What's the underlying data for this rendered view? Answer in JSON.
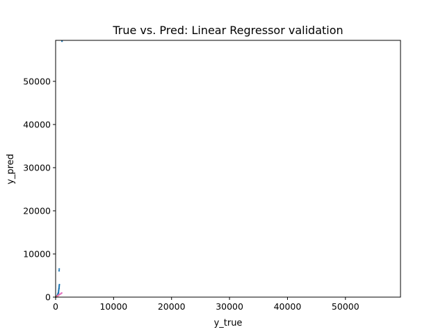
{
  "chart_data": {
    "type": "scatter",
    "title": "True vs. Pred: Linear Regressor validation",
    "xlabel": "y_true",
    "ylabel": "y_pred",
    "xlim": [
      0,
      59500
    ],
    "ylim": [
      0,
      59500
    ],
    "xticks": [
      0,
      10000,
      20000,
      30000,
      40000,
      50000
    ],
    "yticks": [
      0,
      10000,
      20000,
      30000,
      40000,
      50000
    ],
    "grid": false,
    "series": [
      {
        "color": "#1f77b4",
        "points": [
          [
            30,
            20
          ],
          [
            60,
            50
          ],
          [
            90,
            80
          ],
          [
            120,
            100
          ],
          [
            150,
            150
          ],
          [
            180,
            160
          ],
          [
            200,
            250
          ],
          [
            220,
            180
          ],
          [
            250,
            300
          ],
          [
            280,
            350
          ],
          [
            300,
            400
          ],
          [
            320,
            450
          ],
          [
            350,
            500
          ],
          [
            380,
            600
          ],
          [
            400,
            700
          ],
          [
            420,
            800
          ],
          [
            450,
            900
          ],
          [
            480,
            1000
          ],
          [
            500,
            1200
          ],
          [
            520,
            1500
          ],
          [
            550,
            1800
          ],
          [
            580,
            2000
          ],
          [
            600,
            2300
          ],
          [
            620,
            2600
          ],
          [
            650,
            2900
          ],
          [
            600,
            6100
          ],
          [
            620,
            6500
          ],
          [
            1100,
            59300
          ]
        ]
      },
      {
        "color": "#ff7f0e",
        "points": [
          [
            200,
            150
          ],
          [
            350,
            300
          ],
          [
            450,
            400
          ],
          [
            550,
            500
          ],
          [
            700,
            650
          ]
        ]
      },
      {
        "color": "#e377c2",
        "points": [
          [
            300,
            250
          ],
          [
            500,
            450
          ],
          [
            650,
            600
          ],
          [
            800,
            700
          ],
          [
            950,
            850
          ],
          [
            1050,
            950
          ]
        ]
      }
    ]
  }
}
